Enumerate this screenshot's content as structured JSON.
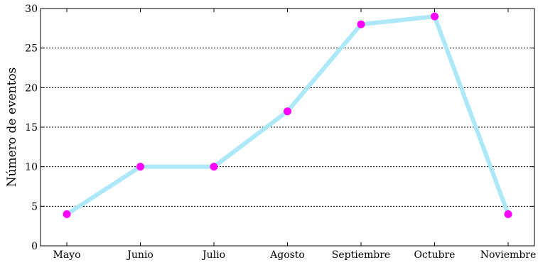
{
  "chart_data": {
    "type": "line",
    "categories": [
      "Mayo",
      "Junio",
      "Julio",
      "Agosto",
      "Septiembre",
      "Octubre",
      "Noviembre"
    ],
    "series": [
      {
        "values": [
          4,
          10,
          10,
          17,
          28,
          29,
          4
        ]
      }
    ],
    "title": "",
    "xlabel": "",
    "ylabel": "Número de eventos",
    "ylim": [
      0,
      30
    ],
    "yticks": [
      "0",
      "5",
      "10",
      "15",
      "20",
      "25",
      "30"
    ],
    "grid": "horizontal-dotted",
    "colors": {
      "line": "#ade8f8",
      "marker": "#ff00ff",
      "grid": "#000000",
      "axis": "#000000"
    }
  }
}
